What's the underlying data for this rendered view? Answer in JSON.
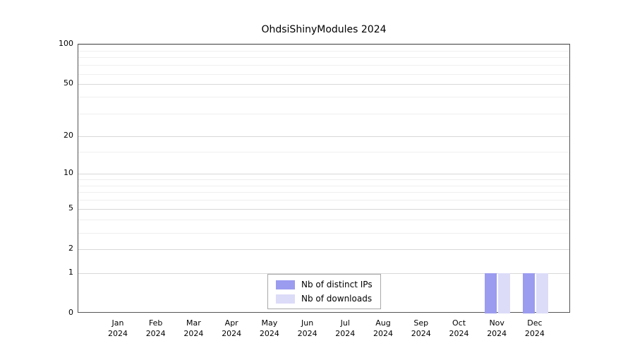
{
  "chart_data": {
    "type": "bar",
    "title": "OhdsiShinyModules 2024",
    "year": "2024",
    "categories": [
      "Jan",
      "Feb",
      "Mar",
      "Apr",
      "May",
      "Jun",
      "Jul",
      "Aug",
      "Sep",
      "Oct",
      "Nov",
      "Dec"
    ],
    "series": [
      {
        "name": "Nb of distinct IPs",
        "color": "#9b9bf0",
        "values": [
          0,
          0,
          0,
          0,
          0,
          0,
          0,
          0,
          0,
          0,
          1,
          1
        ]
      },
      {
        "name": "Nb of downloads",
        "color": "#dcdcf8",
        "values": [
          0,
          0,
          0,
          0,
          0,
          0,
          0,
          0,
          0,
          0,
          1,
          1
        ]
      }
    ],
    "yscale": "log1p",
    "ylim": [
      0,
      100
    ],
    "y_major_ticks": [
      0,
      1,
      2,
      5,
      10,
      20,
      50,
      100
    ],
    "y_minor_ticks": [
      3,
      4,
      6,
      7,
      8,
      9,
      15,
      30,
      40,
      60,
      70,
      80,
      90
    ],
    "grid": "horizontal",
    "legend_position": "bottom-center"
  }
}
